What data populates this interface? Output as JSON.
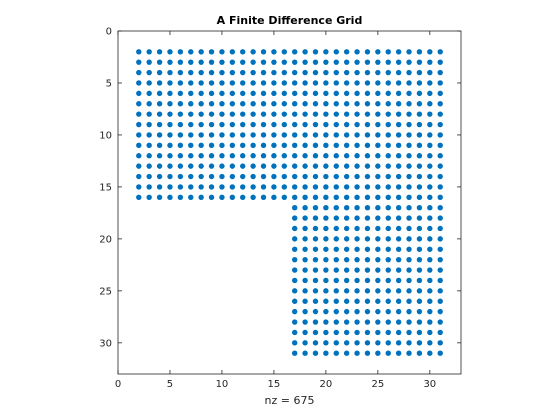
{
  "chart_data": {
    "type": "scatter",
    "title": "A Finite Difference Grid",
    "xlabel": "nz = 675",
    "ylabel": "",
    "xlim": [
      0,
      33
    ],
    "ylim": [
      0,
      33
    ],
    "y_reversed": true,
    "xticks": [
      0,
      5,
      10,
      15,
      20,
      25,
      30
    ],
    "yticks": [
      0,
      5,
      10,
      15,
      20,
      25,
      30
    ],
    "grid": false,
    "marker_color": "#0072BD",
    "regions": [
      {
        "x_range": [
          2,
          31
        ],
        "y_range": [
          2,
          16
        ]
      },
      {
        "x_range": [
          17,
          31
        ],
        "y_range": [
          17,
          31
        ]
      }
    ]
  }
}
